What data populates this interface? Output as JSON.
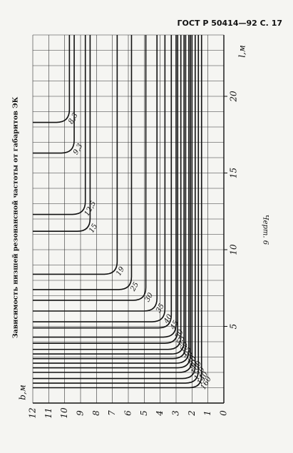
{
  "header": "ГОСТ Р 50414—92 С. 17",
  "caption": "Зависимость низшей резонансной частоты от габаритов ЭК",
  "figure": "Черт. 6",
  "chart_data": {
    "type": "line",
    "x_label": "b,м",
    "y_label": "l,м",
    "xlim": [
      0,
      12
    ],
    "xticks": [
      0,
      1,
      2,
      3,
      4,
      5,
      6,
      7,
      8,
      9,
      10,
      11,
      12
    ],
    "ylim": [
      0,
      24
    ],
    "yticks": [
      5,
      10,
      15,
      20
    ],
    "curves": [
      {
        "label": "8,3",
        "b": 9.7,
        "l": 18.3
      },
      {
        "label": "9,3",
        "b": 9.4,
        "l": 16.3
      },
      {
        "label": "12,5",
        "b": 8.7,
        "l": 12.3
      },
      {
        "label": "15",
        "b": 8.4,
        "l": 11.2
      },
      {
        "label": "19",
        "b": 6.7,
        "l": 8.4
      },
      {
        "label": "25",
        "b": 5.8,
        "l": 7.4
      },
      {
        "label": "30",
        "b": 4.9,
        "l": 6.7
      },
      {
        "label": "35",
        "b": 4.2,
        "l": 6.0
      },
      {
        "label": "40",
        "b": 3.7,
        "l": 5.3
      },
      {
        "label": "45",
        "b": 3.3,
        "l": 4.9
      },
      {
        "label": "50",
        "b": 3.0,
        "l": 4.3
      },
      {
        "label": "55",
        "b": 2.9,
        "l": 3.9
      },
      {
        "label": "60",
        "b": 2.7,
        "l": 3.5
      },
      {
        "label": "65",
        "b": 2.5,
        "l": 3.2
      },
      {
        "label": "70",
        "b": 2.4,
        "l": 2.9
      },
      {
        "label": "80",
        "b": 2.2,
        "l": 2.6
      },
      {
        "label": "90",
        "b": 2.1,
        "l": 2.3
      },
      {
        "label": "100",
        "b": 2.0,
        "l": 2.0
      },
      {
        "label": "120",
        "b": 1.8,
        "l": 1.6
      },
      {
        "label": "140",
        "b": 1.6,
        "l": 1.3
      },
      {
        "label": "160",
        "b": 1.4,
        "l": 1.0
      }
    ]
  }
}
